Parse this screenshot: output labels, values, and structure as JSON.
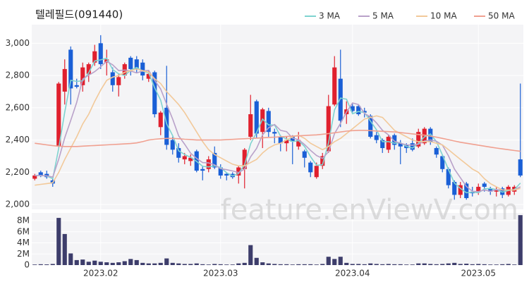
{
  "chart_data": {
    "type": "candlestick",
    "title": "텔레필드(091440)",
    "watermark": "feature.enViewV.com",
    "legend": "top-right",
    "grid": true,
    "up_color": "#e0202e",
    "down_color": "#1a5fd6",
    "categories": [
      null,
      null,
      null,
      null,
      null,
      null,
      null,
      null,
      null,
      null,
      null,
      "2023.02",
      null,
      null,
      null,
      null,
      null,
      null,
      null,
      null,
      null,
      null,
      null,
      null,
      null,
      null,
      null,
      null,
      null,
      null,
      null,
      "2023.03",
      null,
      null,
      null,
      null,
      null,
      null,
      null,
      null,
      null,
      null,
      null,
      null,
      null,
      null,
      null,
      null,
      null,
      null,
      null,
      null,
      null,
      "2023.04",
      null,
      null,
      null,
      null,
      null,
      null,
      null,
      null,
      null,
      null,
      null,
      null,
      null,
      null,
      null,
      null,
      null,
      null,
      null,
      null,
      "2023.05",
      null,
      null,
      null,
      null,
      null,
      null,
      null
    ],
    "open": [
      2160,
      2200,
      2190,
      2150,
      2360,
      2700,
      2960,
      2740,
      2740,
      2810,
      2880,
      3000,
      2880,
      2820,
      2740,
      2800,
      2910,
      2900,
      2880,
      2780,
      2820,
      2480,
      2600,
      2400,
      2350,
      2280,
      2270,
      2330,
      2220,
      2220,
      2320,
      2230,
      2190,
      2190,
      2180,
      2220,
      2420,
      2640,
      2450,
      2580,
      2450,
      2420,
      2380,
      2420,
      2360,
      2330,
      2260,
      2170,
      2240,
      2330,
      2620,
      2780,
      2560,
      2610,
      2610,
      2580,
      2550,
      2430,
      2400,
      2340,
      2430,
      2380,
      2370,
      2380,
      2360,
      2380,
      2470,
      2350,
      2300,
      2220,
      2140,
      2060,
      2130,
      2080,
      2080,
      2130,
      2100,
      2080,
      2100,
      2060,
      2080,
      2280
    ],
    "high": [
      2190,
      2210,
      2210,
      2160,
      2760,
      2900,
      2980,
      2780,
      2880,
      2880,
      2990,
      3050,
      2960,
      2850,
      2810,
      2880,
      2920,
      2920,
      2900,
      2830,
      2830,
      2580,
      2860,
      2420,
      2380,
      2320,
      2310,
      2340,
      2240,
      2300,
      2360,
      2250,
      2200,
      2200,
      2240,
      2350,
      2680,
      2650,
      2600,
      2600,
      2470,
      2430,
      2420,
      2430,
      2450,
      2340,
      2270,
      2260,
      2320,
      2680,
      2920,
      2960,
      2640,
      2630,
      2620,
      2600,
      2560,
      2450,
      2410,
      2430,
      2440,
      2400,
      2380,
      2410,
      2470,
      2480,
      2480,
      2360,
      2310,
      2230,
      2150,
      2140,
      2140,
      2110,
      2130,
      2140,
      2110,
      2110,
      2110,
      2120,
      2120,
      2750
    ],
    "low": [
      2150,
      2170,
      2160,
      2110,
      2350,
      2620,
      2620,
      2720,
      2700,
      2760,
      2860,
      2840,
      2800,
      2700,
      2670,
      2780,
      2800,
      2820,
      2770,
      2760,
      2540,
      2430,
      2340,
      2310,
      2260,
      2250,
      2240,
      2200,
      2150,
      2200,
      2220,
      2160,
      2150,
      2160,
      2130,
      2100,
      2400,
      2410,
      2350,
      2420,
      2380,
      2330,
      2330,
      2250,
      2340,
      2230,
      2170,
      2160,
      2220,
      2320,
      2610,
      2480,
      2500,
      2570,
      2550,
      2540,
      2410,
      2380,
      2320,
      2320,
      2340,
      2250,
      2320,
      2330,
      2350,
      2370,
      2370,
      2290,
      2200,
      2100,
      2030,
      2040,
      2030,
      2050,
      2060,
      2080,
      2060,
      2050,
      2040,
      2050,
      2060,
      2170
    ],
    "close": [
      2180,
      2180,
      2170,
      2130,
      2750,
      2840,
      2720,
      2730,
      2850,
      2870,
      2950,
      2870,
      2900,
      2740,
      2790,
      2870,
      2840,
      2840,
      2800,
      2810,
      2560,
      2570,
      2370,
      2340,
      2290,
      2300,
      2290,
      2210,
      2210,
      2280,
      2230,
      2180,
      2180,
      2170,
      2230,
      2340,
      2560,
      2440,
      2590,
      2450,
      2440,
      2380,
      2400,
      2390,
      2400,
      2290,
      2200,
      2240,
      2300,
      2610,
      2850,
      2520,
      2590,
      2580,
      2560,
      2570,
      2420,
      2400,
      2350,
      2420,
      2370,
      2360,
      2350,
      2340,
      2450,
      2470,
      2390,
      2310,
      2220,
      2120,
      2060,
      2120,
      2040,
      2070,
      2110,
      2110,
      2080,
      2090,
      2060,
      2110,
      2110,
      2180
    ],
    "ylim": [
      1970,
      3115
    ],
    "yticks": [
      {
        "value": 2000,
        "label": "2,000"
      },
      {
        "value": 2200,
        "label": "2,200"
      },
      {
        "value": 2400,
        "label": "2,400"
      },
      {
        "value": 2600,
        "label": "2,600"
      },
      {
        "value": 2800,
        "label": "2,800"
      },
      {
        "value": 3000,
        "label": "3,000"
      }
    ],
    "series": [
      {
        "name": "3 MA",
        "color": "#7fd3d0",
        "values": [
          2180,
          2180,
          2177,
          2160,
          2350,
          2573,
          2770,
          2763,
          2767,
          2817,
          2890,
          2897,
          2907,
          2837,
          2810,
          2800,
          2833,
          2850,
          2827,
          2817,
          2723,
          2647,
          2500,
          2427,
          2333,
          2310,
          2293,
          2267,
          2237,
          2233,
          2240,
          2230,
          2197,
          2177,
          2193,
          2247,
          2377,
          2447,
          2530,
          2493,
          2493,
          2423,
          2407,
          2390,
          2397,
          2360,
          2297,
          2243,
          2247,
          2383,
          2587,
          2660,
          2653,
          2563,
          2577,
          2570,
          2517,
          2463,
          2390,
          2390,
          2380,
          2383,
          2360,
          2350,
          2380,
          2420,
          2437,
          2390,
          2307,
          2217,
          2133,
          2100,
          2073,
          2077,
          2073,
          2097,
          2100,
          2093,
          2077,
          2087,
          2093,
          2133
        ]
      },
      {
        "name": "5 MA",
        "color": "#b9a1c9",
        "values": [
          2180,
          2180,
          2178,
          2170,
          2282,
          2414,
          2522,
          2634,
          2778,
          2802,
          2824,
          2854,
          2888,
          2866,
          2830,
          2834,
          2828,
          2816,
          2828,
          2832,
          2770,
          2716,
          2622,
          2530,
          2426,
          2374,
          2318,
          2286,
          2260,
          2258,
          2246,
          2222,
          2216,
          2208,
          2198,
          2220,
          2296,
          2348,
          2432,
          2476,
          2496,
          2460,
          2452,
          2412,
          2402,
          2372,
          2336,
          2304,
          2286,
          2328,
          2440,
          2504,
          2574,
          2630,
          2620,
          2564,
          2544,
          2506,
          2460,
          2432,
          2392,
          2380,
          2370,
          2368,
          2374,
          2394,
          2400,
          2392,
          2368,
          2302,
          2220,
          2166,
          2112,
          2082,
          2080,
          2090,
          2082,
          2092,
          2090,
          2090,
          2090,
          2110
        ]
      },
      {
        "name": "10 MA",
        "color": "#f2c99a",
        "values": [
          2120,
          2125,
          2130,
          2135,
          2200,
          2280,
          2350,
          2420,
          2500,
          2560,
          2640,
          2710,
          2770,
          2790,
          2800,
          2820,
          2830,
          2840,
          2830,
          2820,
          2780,
          2750,
          2700,
          2660,
          2620,
          2570,
          2510,
          2450,
          2390,
          2340,
          2310,
          2290,
          2270,
          2250,
          2240,
          2240,
          2260,
          2280,
          2320,
          2350,
          2370,
          2380,
          2400,
          2420,
          2430,
          2410,
          2380,
          2360,
          2340,
          2360,
          2390,
          2410,
          2440,
          2470,
          2500,
          2530,
          2540,
          2550,
          2540,
          2500,
          2460,
          2440,
          2420,
          2400,
          2390,
          2390,
          2390,
          2380,
          2370,
          2340,
          2310,
          2280,
          2250,
          2220,
          2200,
          2160,
          2130,
          2110,
          2090,
          2090,
          2090,
          2100
        ]
      },
      {
        "name": "50 MA",
        "color": "#f0a090",
        "values": [
          2380,
          2375,
          2370,
          2365,
          2362,
          2360,
          2360,
          2360,
          2362,
          2364,
          2366,
          2368,
          2370,
          2372,
          2374,
          2376,
          2378,
          2382,
          2390,
          2400,
          2405,
          2408,
          2410,
          2410,
          2408,
          2405,
          2403,
          2400,
          2400,
          2400,
          2400,
          2400,
          2402,
          2404,
          2406,
          2408,
          2410,
          2412,
          2414,
          2416,
          2418,
          2420,
          2422,
          2424,
          2426,
          2428,
          2430,
          2432,
          2436,
          2440,
          2445,
          2450,
          2455,
          2458,
          2460,
          2460,
          2458,
          2456,
          2454,
          2452,
          2450,
          2446,
          2442,
          2438,
          2434,
          2430,
          2424,
          2418,
          2410,
          2402,
          2394,
          2386,
          2380,
          2374,
          2368,
          2362,
          2356,
          2350,
          2345,
          2340,
          2335,
          2330
        ]
      }
    ],
    "volume": {
      "color": "#3d3d6b",
      "ylim": [
        0,
        9400000
      ],
      "yticks": [
        0,
        {
          "value": 2000000,
          "label": "2M"
        },
        {
          "value": 4000000,
          "label": "4M"
        },
        {
          "value": 6000000,
          "label": "6M"
        },
        {
          "value": 8000000,
          "label": "8M"
        }
      ],
      "values": [
        100000,
        150000,
        120000,
        200000,
        8500000,
        5600000,
        2100000,
        900000,
        1000000,
        600000,
        800000,
        600000,
        500000,
        400000,
        500000,
        700000,
        1100000,
        900000,
        400000,
        300000,
        300000,
        400000,
        1200000,
        400000,
        300000,
        200000,
        200000,
        300000,
        150000,
        100000,
        200000,
        150000,
        100000,
        100000,
        300000,
        400000,
        3600000,
        1300000,
        500000,
        300000,
        200000,
        150000,
        150000,
        100000,
        150000,
        150000,
        150000,
        100000,
        200000,
        1500000,
        1100000,
        1500000,
        400000,
        200000,
        200000,
        150000,
        300000,
        200000,
        150000,
        200000,
        150000,
        150000,
        100000,
        100000,
        300000,
        300000,
        200000,
        150000,
        200000,
        300000,
        400000,
        200000,
        250000,
        150000,
        200000,
        150000,
        100000,
        100000,
        150000,
        200000,
        100000,
        9000000
      ]
    }
  }
}
